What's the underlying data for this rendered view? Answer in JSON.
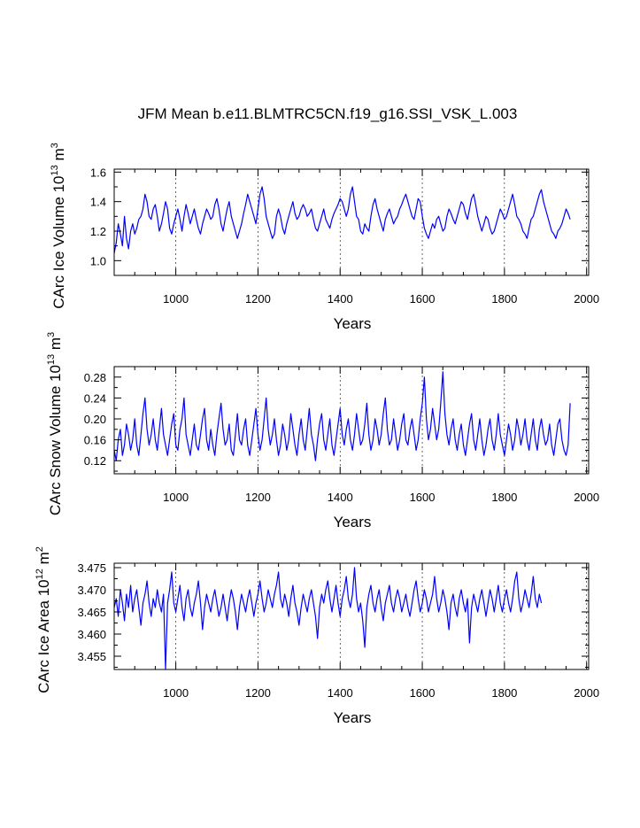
{
  "title": "JFM Mean b.e11.BLMTRC5CN.f19_g16.SSI_VSK_L.003",
  "colors": {
    "series": "#0000ff",
    "axes": "#000000",
    "grid": "#000000"
  },
  "chart_data": [
    {
      "type": "line",
      "name": "ice-volume",
      "title": "JFM Mean b.e11.BLMTRC5CN.f19_g16.SSI_VSK_L.003",
      "xlabel": "Years",
      "ylabel": {
        "base": "CArc Ice Volume 10",
        "exp1": "13",
        "unit": " m",
        "exp2": "3"
      },
      "xlim": [
        850,
        2005
      ],
      "ylim": [
        0.9,
        1.62
      ],
      "xticks": [
        1000,
        1200,
        1400,
        1600,
        1800,
        2000
      ],
      "yticks": [
        1.0,
        1.2,
        1.4,
        1.6
      ],
      "ytick_labels": [
        "1.0",
        "1.2",
        "1.4",
        "1.6"
      ],
      "grid": "vertical dashed at major x ticks",
      "series": [
        {
          "name": "CArc Ice Volume",
          "color": "#0000ff",
          "x_start": 850,
          "x_step": 5,
          "values": [
            1.05,
            1.12,
            1.25,
            1.18,
            1.1,
            1.3,
            1.15,
            1.08,
            1.2,
            1.25,
            1.18,
            1.22,
            1.28,
            1.3,
            1.35,
            1.45,
            1.4,
            1.3,
            1.28,
            1.35,
            1.38,
            1.3,
            1.2,
            1.25,
            1.32,
            1.4,
            1.35,
            1.22,
            1.18,
            1.25,
            1.3,
            1.35,
            1.28,
            1.2,
            1.3,
            1.38,
            1.32,
            1.25,
            1.3,
            1.35,
            1.28,
            1.22,
            1.18,
            1.25,
            1.3,
            1.35,
            1.32,
            1.28,
            1.3,
            1.38,
            1.42,
            1.35,
            1.25,
            1.2,
            1.28,
            1.35,
            1.4,
            1.3,
            1.25,
            1.2,
            1.15,
            1.2,
            1.25,
            1.32,
            1.38,
            1.45,
            1.4,
            1.35,
            1.3,
            1.25,
            1.35,
            1.45,
            1.5,
            1.42,
            1.3,
            1.25,
            1.2,
            1.15,
            1.18,
            1.3,
            1.35,
            1.3,
            1.22,
            1.18,
            1.25,
            1.3,
            1.35,
            1.4,
            1.32,
            1.28,
            1.3,
            1.35,
            1.38,
            1.35,
            1.3,
            1.32,
            1.35,
            1.28,
            1.22,
            1.2,
            1.25,
            1.3,
            1.35,
            1.28,
            1.25,
            1.22,
            1.28,
            1.32,
            1.35,
            1.38,
            1.42,
            1.4,
            1.35,
            1.3,
            1.35,
            1.45,
            1.5,
            1.4,
            1.3,
            1.28,
            1.2,
            1.18,
            1.25,
            1.22,
            1.2,
            1.3,
            1.38,
            1.42,
            1.35,
            1.3,
            1.25,
            1.2,
            1.28,
            1.32,
            1.35,
            1.3,
            1.25,
            1.28,
            1.3,
            1.35,
            1.38,
            1.42,
            1.45,
            1.4,
            1.35,
            1.3,
            1.28,
            1.35,
            1.42,
            1.4,
            1.3,
            1.22,
            1.18,
            1.15,
            1.2,
            1.25,
            1.22,
            1.28,
            1.3,
            1.25,
            1.2,
            1.22,
            1.3,
            1.35,
            1.32,
            1.28,
            1.25,
            1.3,
            1.35,
            1.4,
            1.38,
            1.32,
            1.28,
            1.35,
            1.42,
            1.45,
            1.38,
            1.3,
            1.25,
            1.2,
            1.25,
            1.3,
            1.28,
            1.22,
            1.18,
            1.2,
            1.25,
            1.3,
            1.35,
            1.32,
            1.28,
            1.3,
            1.35,
            1.4,
            1.45,
            1.38,
            1.3,
            1.28,
            1.25,
            1.2,
            1.18,
            1.15,
            1.22,
            1.28,
            1.3,
            1.35,
            1.4,
            1.45,
            1.48,
            1.4,
            1.35,
            1.3,
            1.25,
            1.2,
            1.18,
            1.15,
            1.2,
            1.22,
            1.25,
            1.3,
            1.35,
            1.32,
            1.28
          ]
        }
      ]
    },
    {
      "type": "line",
      "name": "snow-volume",
      "xlabel": "Years",
      "ylabel": {
        "base": "CArc Snow Volume 10",
        "exp1": "13",
        "unit": " m",
        "exp2": "3"
      },
      "xlim": [
        850,
        2005
      ],
      "ylim": [
        0.095,
        0.3
      ],
      "xticks": [
        1000,
        1200,
        1400,
        1600,
        1800,
        2000
      ],
      "yticks": [
        0.12,
        0.16,
        0.2,
        0.24,
        0.28
      ],
      "ytick_labels": [
        "0.12",
        "0.16",
        "0.20",
        "0.24",
        "0.28"
      ],
      "grid": "vertical dashed at major x ticks",
      "series": [
        {
          "name": "CArc Snow Volume",
          "color": "#0000ff",
          "x_start": 850,
          "x_step": 5,
          "values": [
            0.14,
            0.12,
            0.16,
            0.18,
            0.13,
            0.15,
            0.19,
            0.17,
            0.14,
            0.16,
            0.2,
            0.15,
            0.13,
            0.17,
            0.21,
            0.24,
            0.18,
            0.15,
            0.17,
            0.2,
            0.16,
            0.14,
            0.18,
            0.22,
            0.17,
            0.15,
            0.13,
            0.16,
            0.19,
            0.21,
            0.15,
            0.14,
            0.18,
            0.2,
            0.24,
            0.17,
            0.15,
            0.13,
            0.16,
            0.19,
            0.15,
            0.14,
            0.17,
            0.2,
            0.22,
            0.16,
            0.14,
            0.18,
            0.15,
            0.13,
            0.17,
            0.2,
            0.23,
            0.18,
            0.15,
            0.16,
            0.19,
            0.14,
            0.13,
            0.17,
            0.21,
            0.16,
            0.15,
            0.18,
            0.2,
            0.15,
            0.13,
            0.16,
            0.19,
            0.22,
            0.17,
            0.14,
            0.16,
            0.2,
            0.24,
            0.18,
            0.15,
            0.17,
            0.2,
            0.16,
            0.13,
            0.15,
            0.19,
            0.17,
            0.14,
            0.16,
            0.21,
            0.18,
            0.15,
            0.13,
            0.17,
            0.2,
            0.16,
            0.14,
            0.18,
            0.22,
            0.17,
            0.15,
            0.12,
            0.16,
            0.19,
            0.21,
            0.16,
            0.14,
            0.17,
            0.2,
            0.15,
            0.13,
            0.16,
            0.19,
            0.22,
            0.17,
            0.15,
            0.18,
            0.2,
            0.16,
            0.14,
            0.17,
            0.21,
            0.18,
            0.15,
            0.16,
            0.19,
            0.23,
            0.17,
            0.14,
            0.16,
            0.2,
            0.18,
            0.15,
            0.17,
            0.21,
            0.24,
            0.18,
            0.15,
            0.16,
            0.2,
            0.17,
            0.14,
            0.16,
            0.19,
            0.21,
            0.16,
            0.15,
            0.18,
            0.2,
            0.17,
            0.14,
            0.16,
            0.2,
            0.23,
            0.28,
            0.2,
            0.16,
            0.18,
            0.22,
            0.19,
            0.16,
            0.18,
            0.23,
            0.29,
            0.21,
            0.17,
            0.15,
            0.18,
            0.2,
            0.16,
            0.14,
            0.17,
            0.19,
            0.15,
            0.13,
            0.16,
            0.19,
            0.21,
            0.16,
            0.14,
            0.17,
            0.2,
            0.16,
            0.13,
            0.15,
            0.18,
            0.2,
            0.16,
            0.14,
            0.17,
            0.21,
            0.17,
            0.15,
            0.13,
            0.16,
            0.19,
            0.17,
            0.14,
            0.16,
            0.2,
            0.18,
            0.15,
            0.17,
            0.2,
            0.16,
            0.14,
            0.17,
            0.2,
            0.16,
            0.14,
            0.18,
            0.2,
            0.17,
            0.15,
            0.16,
            0.19,
            0.15,
            0.13,
            0.16,
            0.19,
            0.2,
            0.16,
            0.14,
            0.13,
            0.15,
            0.23
          ]
        }
      ]
    },
    {
      "type": "line",
      "name": "ice-area",
      "xlabel": "Years",
      "ylabel": {
        "base": "CArc Ice Area 10",
        "exp1": "12",
        "unit": " m",
        "exp2": "2"
      },
      "xlim": [
        850,
        2005
      ],
      "ylim": [
        3.452,
        3.476
      ],
      "xticks": [
        1000,
        1200,
        1400,
        1600,
        1800,
        2000
      ],
      "yticks": [
        3.455,
        3.46,
        3.465,
        3.47,
        3.475
      ],
      "ytick_labels": [
        "3.455",
        "3.460",
        "3.465",
        "3.470",
        "3.475"
      ],
      "grid": "vertical dashed at major x ticks",
      "series": [
        {
          "name": "CArc Ice Area",
          "color": "#0000ff",
          "x_start": 850,
          "x_step": 5,
          "values": [
            3.466,
            3.468,
            3.464,
            3.47,
            3.467,
            3.463,
            3.469,
            3.466,
            3.471,
            3.465,
            3.468,
            3.47,
            3.466,
            3.462,
            3.467,
            3.469,
            3.472,
            3.467,
            3.464,
            3.468,
            3.466,
            3.47,
            3.467,
            3.465,
            3.469,
            3.452,
            3.467,
            3.47,
            3.474,
            3.467,
            3.465,
            3.468,
            3.471,
            3.466,
            3.463,
            3.468,
            3.47,
            3.466,
            3.464,
            3.467,
            3.469,
            3.472,
            3.467,
            3.461,
            3.466,
            3.469,
            3.467,
            3.465,
            3.468,
            3.47,
            3.467,
            3.464,
            3.466,
            3.469,
            3.466,
            3.463,
            3.467,
            3.47,
            3.468,
            3.465,
            3.461,
            3.466,
            3.469,
            3.467,
            3.465,
            3.468,
            3.47,
            3.467,
            3.464,
            3.467,
            3.469,
            3.472,
            3.468,
            3.465,
            3.467,
            3.47,
            3.468,
            3.466,
            3.469,
            3.471,
            3.474,
            3.468,
            3.466,
            3.469,
            3.467,
            3.464,
            3.468,
            3.471,
            3.467,
            3.465,
            3.462,
            3.466,
            3.469,
            3.467,
            3.465,
            3.468,
            3.47,
            3.467,
            3.464,
            3.459,
            3.466,
            3.469,
            3.467,
            3.47,
            3.472,
            3.468,
            3.465,
            3.468,
            3.471,
            3.467,
            3.464,
            3.468,
            3.47,
            3.473,
            3.468,
            3.466,
            3.469,
            3.475,
            3.468,
            3.465,
            3.467,
            3.463,
            3.457,
            3.466,
            3.469,
            3.471,
            3.467,
            3.465,
            3.468,
            3.47,
            3.466,
            3.463,
            3.467,
            3.469,
            3.471,
            3.467,
            3.465,
            3.468,
            3.47,
            3.468,
            3.465,
            3.467,
            3.469,
            3.466,
            3.464,
            3.467,
            3.47,
            3.472,
            3.468,
            3.465,
            3.467,
            3.47,
            3.468,
            3.465,
            3.467,
            3.469,
            3.473,
            3.468,
            3.465,
            3.467,
            3.47,
            3.468,
            3.465,
            3.461,
            3.467,
            3.469,
            3.466,
            3.464,
            3.468,
            3.47,
            3.467,
            3.465,
            3.468,
            3.458,
            3.466,
            3.469,
            3.467,
            3.465,
            3.468,
            3.47,
            3.467,
            3.464,
            3.467,
            3.47,
            3.468,
            3.465,
            3.468,
            3.471,
            3.467,
            3.465,
            3.468,
            3.47,
            3.467,
            3.465,
            3.468,
            3.472,
            3.474,
            3.468,
            3.465,
            3.467,
            3.47,
            3.468,
            3.466,
            3.469,
            3.473,
            3.468,
            3.466,
            3.469,
            3.467
          ]
        }
      ]
    }
  ]
}
